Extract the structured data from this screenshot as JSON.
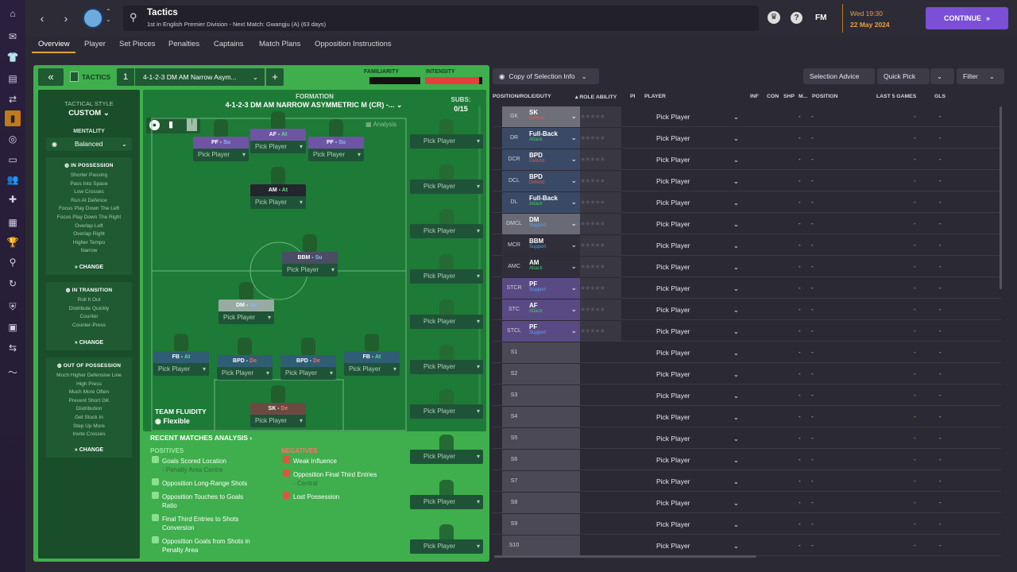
{
  "nav": {
    "title": "Tactics",
    "subtitle": "1st in English Premier Division - Next Match: Gwangju (A) (63 days)",
    "datetime": "Wed 19:30",
    "date": "22 May 2024",
    "continue": "CONTINUE",
    "fm": "FM"
  },
  "tabs": [
    "Overview",
    "Player",
    "Set Pieces",
    "Penalties",
    "Captains",
    "Match Plans",
    "Opposition Instructions"
  ],
  "tactics": {
    "label": "TACTICS",
    "slot": "1",
    "formation_name": "4-1-2-3 DM AM Narrow Asym...",
    "familiarity": "FAMILIARITY",
    "intensity": "INTENSITY",
    "formation_heading": "FORMATION",
    "formation_full": "4-1-2-3 DM AM NARROW ASYMMETRIC M (CR) -...",
    "subs_label": "SUBS:",
    "subs_count": "0/15",
    "analysis": "Analysis"
  },
  "style": {
    "heading": "TACTICAL STYLE",
    "value": "CUSTOM",
    "mentality_label": "MENTALITY",
    "mentality": "Balanced",
    "in_possession": {
      "title": "IN POSSESSION",
      "items": [
        "Shorter Passing",
        "Pass Into Space",
        "Low Crosses",
        "Run At Defence",
        "Focus Play Down The Left",
        "Focus Play Down The Right",
        "Overlap Left",
        "Overlap Right",
        "Higher Tempo",
        "Narrow"
      ],
      "change": "CHANGE"
    },
    "in_transition": {
      "title": "IN TRANSITION",
      "items": [
        "Roll It Out",
        "Distribute Quickly",
        "Counter",
        "Counter-Press"
      ],
      "change": "CHANGE"
    },
    "out_of_possession": {
      "title": "OUT OF POSSESSION",
      "items": [
        "Much Higher Defensive Line",
        "High Press",
        "Much More Often",
        "Prevent Short GK",
        "Distribution",
        "Get Stuck In",
        "Step Up More",
        "Invite Crosses"
      ],
      "change": "CHANGE"
    }
  },
  "pitch_players": [
    {
      "role": "PF",
      "duty": "Su",
      "pick": "Pick Player"
    },
    {
      "role": "AF",
      "duty": "At",
      "pick": "Pick Player"
    },
    {
      "role": "PF",
      "duty": "Su",
      "pick": "Pick Player"
    },
    {
      "role": "AM",
      "duty": "At",
      "pick": "Pick Player"
    },
    {
      "role": "BBM",
      "duty": "Su",
      "pick": "Pick Player"
    },
    {
      "role": "DM",
      "duty": "Su",
      "pick": "Pick Player"
    },
    {
      "role": "FB",
      "duty": "At",
      "pick": "Pick Player"
    },
    {
      "role": "BPD",
      "duty": "De",
      "pick": "Pick Player"
    },
    {
      "role": "BPD",
      "duty": "De",
      "pick": "Pick Player"
    },
    {
      "role": "FB",
      "duty": "At",
      "pick": "Pick Player"
    },
    {
      "role": "SK",
      "duty": "De",
      "pick": "Pick Player"
    }
  ],
  "subs_pick": "Pick Player",
  "fluidity": {
    "label": "TEAM FLUIDITY",
    "value": "Flexible"
  },
  "recent": {
    "title": "RECENT MATCHES ANALYSIS",
    "positives_title": "POSITIVES",
    "positives": [
      [
        "Goals Scored Location",
        "- Penalty Area Centre"
      ],
      [
        "Opposition Long-Range Shots",
        ""
      ],
      [
        "Opposition Touches to Goals",
        "Ratio"
      ],
      [
        "Final Third Entries to Shots",
        "Conversion"
      ],
      [
        "Opposition Goals from Shots in",
        "Penalty Area"
      ]
    ],
    "negatives_title": "NEGATIVES",
    "negatives": [
      [
        "Weak Influence",
        ""
      ],
      [
        "Opposition Final Third Entries",
        "- Central"
      ],
      [
        "Lost Possession",
        ""
      ]
    ]
  },
  "right": {
    "copy_btn": "Copy of Selection Info",
    "selection_advice": "Selection Advice",
    "quick_pick": "Quick Pick",
    "filter": "Filter",
    "headers": {
      "pos": "POSITION/ROLE/DUTY",
      "role_ability": "ROLE ABILITY",
      "pi": "PI",
      "player": "PLAYER",
      "inf": "INF",
      "con": "CON",
      "shp": "SHP",
      "m": "M...",
      "position": "POSITION",
      "last5": "LAST 5 GAMES",
      "gls": "GLS"
    },
    "rows": [
      {
        "pos": "GK",
        "role": "SK",
        "duty": "Defend",
        "duty_color": "#e2584e"
      },
      {
        "pos": "DR",
        "role": "Full-Back",
        "duty": "Attack",
        "duty_color": "#4bc46a"
      },
      {
        "pos": "DCR",
        "role": "BPD",
        "duty": "Defend",
        "duty_color": "#e2584e"
      },
      {
        "pos": "DCL",
        "role": "BPD",
        "duty": "Defend",
        "duty_color": "#e2584e"
      },
      {
        "pos": "DL",
        "role": "Full-Back",
        "duty": "Attack",
        "duty_color": "#4bc46a"
      },
      {
        "pos": "DMCL",
        "role": "DM",
        "duty": "Support",
        "duty_color": "#5aa6e6"
      },
      {
        "pos": "MCR",
        "role": "BBM",
        "duty": "Support",
        "duty_color": "#5aa6e6"
      },
      {
        "pos": "AMC",
        "role": "AM",
        "duty": "Attack",
        "duty_color": "#4bc46a"
      },
      {
        "pos": "STCR",
        "role": "PF",
        "duty": "Support",
        "duty_color": "#5aa6e6"
      },
      {
        "pos": "STC",
        "role": "AF",
        "duty": "Attack",
        "duty_color": "#4bc46a"
      },
      {
        "pos": "STCL",
        "role": "PF",
        "duty": "Support",
        "duty_color": "#5aa6e6"
      },
      {
        "pos": "S1",
        "role": "",
        "duty": "",
        "duty_color": ""
      },
      {
        "pos": "S2",
        "role": "",
        "duty": "",
        "duty_color": ""
      },
      {
        "pos": "S3",
        "role": "",
        "duty": "",
        "duty_color": ""
      },
      {
        "pos": "S4",
        "role": "",
        "duty": "",
        "duty_color": ""
      },
      {
        "pos": "S5",
        "role": "",
        "duty": "",
        "duty_color": ""
      },
      {
        "pos": "S6",
        "role": "",
        "duty": "",
        "duty_color": ""
      },
      {
        "pos": "S7",
        "role": "",
        "duty": "",
        "duty_color": ""
      },
      {
        "pos": "S8",
        "role": "",
        "duty": "",
        "duty_color": ""
      },
      {
        "pos": "S9",
        "role": "",
        "duty": "",
        "duty_color": ""
      },
      {
        "pos": "S10",
        "role": "",
        "duty": "",
        "duty_color": ""
      }
    ],
    "pick": "Pick Player",
    "dash": "-"
  },
  "colors": {
    "accent": "#7b4fd6",
    "pitch": "#3fae4d",
    "intensity": "#e3403d"
  },
  "sidebar_icons": [
    "home-icon",
    "inbox-icon",
    "squad-icon",
    "tactics-icon",
    "dynamics-icon",
    "development-icon",
    "scouting-icon",
    "transfers-icon",
    "club-icon",
    "schedule-icon",
    "competitions-icon",
    "staff-icon",
    "search-icon",
    "refresh-icon",
    "shield-icon",
    "finance-icon",
    "medical-icon",
    "report-icon"
  ]
}
